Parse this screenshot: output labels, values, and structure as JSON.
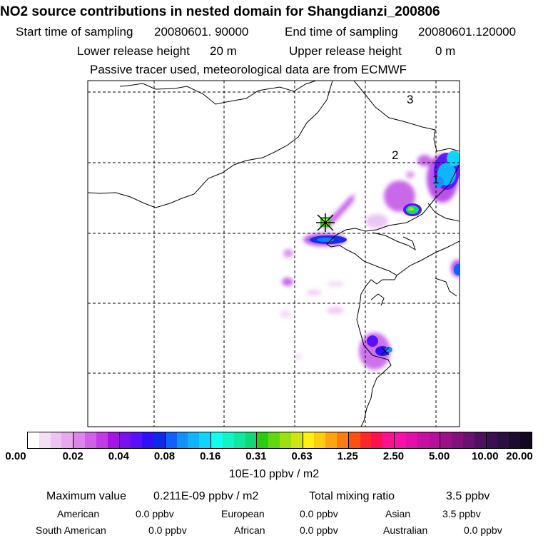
{
  "header": {
    "title": "NO2 source contributions in nested domain for Shangdianzi_200806",
    "start_label": "Start time of sampling",
    "start_value": "20080601. 90000",
    "end_label": "End time of sampling",
    "end_value": "20080601.120000",
    "lower_label": "Lower release height",
    "lower_value": "20 m",
    "upper_label": "Upper release height",
    "upper_value": "0 m",
    "note": "Passive tracer used, meteorological data are from ECMWF"
  },
  "map": {
    "circle_labels": [
      "3",
      "2",
      "1"
    ],
    "station_marker": "station-cross"
  },
  "colorbar": {
    "ticks": [
      "0.00",
      "0.02",
      "0.04",
      "0.08",
      "0.16",
      "0.31",
      "0.63",
      "1.25",
      "2.50",
      "5.00",
      "10.00",
      "20.00"
    ],
    "unit": "10E-10 ppbv / m2",
    "colors": [
      [
        "#ffffff",
        "#f5ddf6",
        "#efc3f1",
        "#e8a8ec"
      ],
      [
        "#dd85e8",
        "#d060e6",
        "#c03ce6",
        "#a514e4"
      ],
      [
        "#7a10ec",
        "#5810ff",
        "#2f10fb",
        "#1028e8"
      ],
      [
        "#1060ff",
        "#1490ff",
        "#10b4ff",
        "#10d4ff"
      ],
      [
        "#10ffee",
        "#10f4c8",
        "#10e8a0",
        "#10d878"
      ],
      [
        "#28cc10",
        "#60d810",
        "#9ce010",
        "#d0e410"
      ],
      [
        "#fff010",
        "#ffcc10",
        "#ffa410",
        "#ff7c10"
      ],
      [
        "#ff5010",
        "#ff2828",
        "#ff1050",
        "#ff1090"
      ],
      [
        "#f810a8",
        "#e010a8",
        "#c810a0",
        "#b81098"
      ],
      [
        "#9c1088",
        "#84107c",
        "#6a1070",
        "#501060"
      ],
      [
        "#3c1050",
        "#2c1040",
        "#1e0c30",
        "#120820"
      ]
    ]
  },
  "stats": {
    "max_label": "Maximum value",
    "max_value": "0.211E-09 ppbv / m2",
    "total_label": "Total mixing ratio",
    "total_value": "3.5 ppbv"
  },
  "regions": [
    {
      "name": "American",
      "value": "0.0 ppbv"
    },
    {
      "name": "European",
      "value": "0.0 ppbv"
    },
    {
      "name": "Asian",
      "value": "3.5 ppbv"
    },
    {
      "name": "South American",
      "value": "0.0 ppbv"
    },
    {
      "name": "African",
      "value": "0.0 ppbv"
    },
    {
      "name": "Australian",
      "value": "0.0 ppbv"
    }
  ]
}
